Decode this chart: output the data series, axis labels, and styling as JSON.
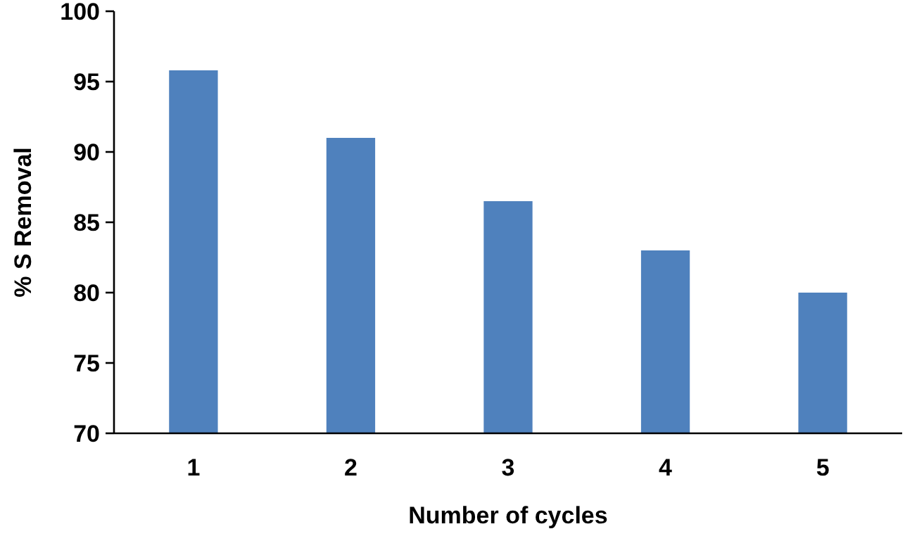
{
  "chart_data": {
    "type": "bar",
    "xlabel": "Number of cycles",
    "ylabel": "% S Removal",
    "categories": [
      "1",
      "2",
      "3",
      "4",
      "5"
    ],
    "values": [
      95.8,
      91,
      86.5,
      83,
      80
    ],
    "color": "#4f81bd",
    "ylim": [
      70,
      100
    ],
    "yticks": [
      70,
      75,
      80,
      85,
      90,
      95,
      100
    ],
    "grid": false
  }
}
